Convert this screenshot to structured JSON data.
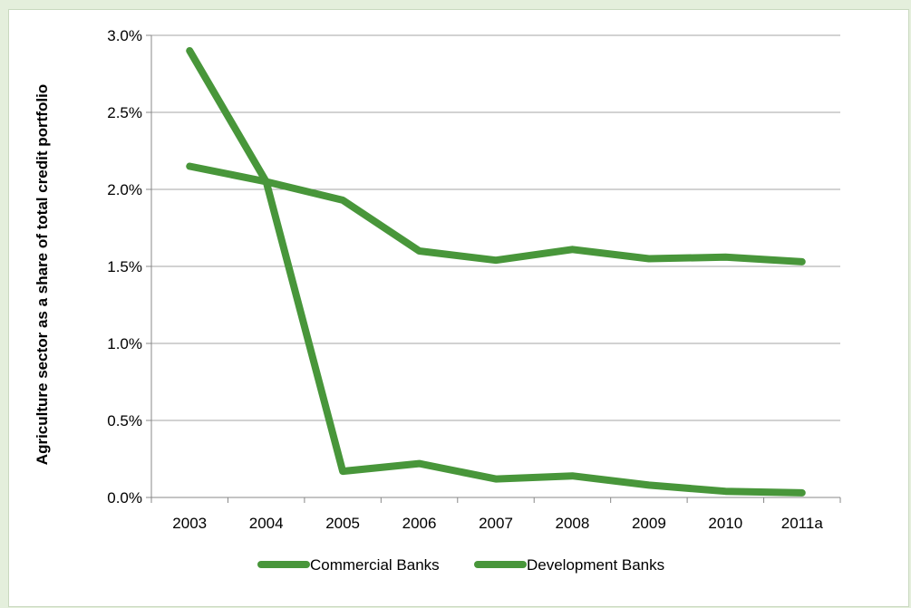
{
  "chart_data": {
    "type": "line",
    "title": "",
    "xlabel": "",
    "ylabel": "Agriculture sector as a share of total credit portfolio",
    "categories": [
      "2003",
      "2004",
      "2005",
      "2006",
      "2007",
      "2008",
      "2009",
      "2010",
      "2011a"
    ],
    "ylim": [
      0,
      3.0
    ],
    "yticks": [
      "0.0%",
      "0.5%",
      "1.0%",
      "1.5%",
      "2.0%",
      "2.5%",
      "3.0%"
    ],
    "grid": "horizontal",
    "legend_position": "bottom",
    "series": [
      {
        "name": "Commercial Banks",
        "values": [
          2.15,
          2.05,
          1.93,
          1.6,
          1.54,
          1.61,
          1.55,
          1.56,
          1.53
        ],
        "color": "#48963a"
      },
      {
        "name": "Development Banks",
        "values": [
          2.9,
          2.05,
          0.17,
          0.22,
          0.12,
          0.14,
          0.08,
          0.04,
          0.03
        ],
        "color": "#48963a"
      }
    ]
  }
}
